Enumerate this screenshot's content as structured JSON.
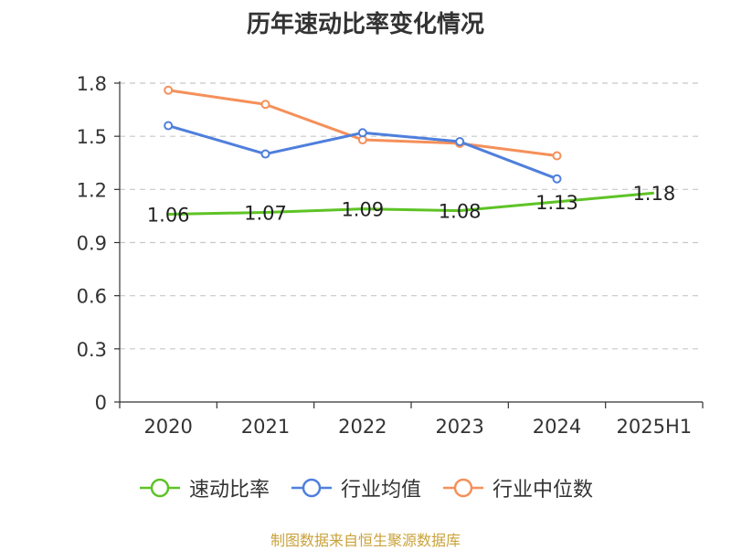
{
  "chart_data": {
    "type": "line",
    "title": "历年速动比率变化情况",
    "categories": [
      "2020",
      "2021",
      "2022",
      "2023",
      "2024",
      "2025H1"
    ],
    "y_ticks": [
      "0",
      "0.3",
      "0.6",
      "0.9",
      "1.2",
      "1.5",
      "1.8"
    ],
    "ylim": [
      0,
      1.8
    ],
    "grid": true,
    "legend_position": "bottom",
    "series": [
      {
        "name": "速动比率",
        "color": "#5ec326",
        "values": [
          1.06,
          1.07,
          1.09,
          1.08,
          1.13,
          1.18
        ],
        "labels": [
          "1.06",
          "1.07",
          "1.09",
          "1.08",
          "1.13",
          "1.18"
        ]
      },
      {
        "name": "行业均值",
        "color": "#4f7fdc",
        "values": [
          1.56,
          1.4,
          1.52,
          1.47,
          1.26,
          null
        ]
      },
      {
        "name": "行业中位数",
        "color": "#f5905a",
        "values": [
          1.76,
          1.68,
          1.48,
          1.46,
          1.39,
          null
        ]
      }
    ]
  },
  "source": "制图数据来自恒生聚源数据库"
}
